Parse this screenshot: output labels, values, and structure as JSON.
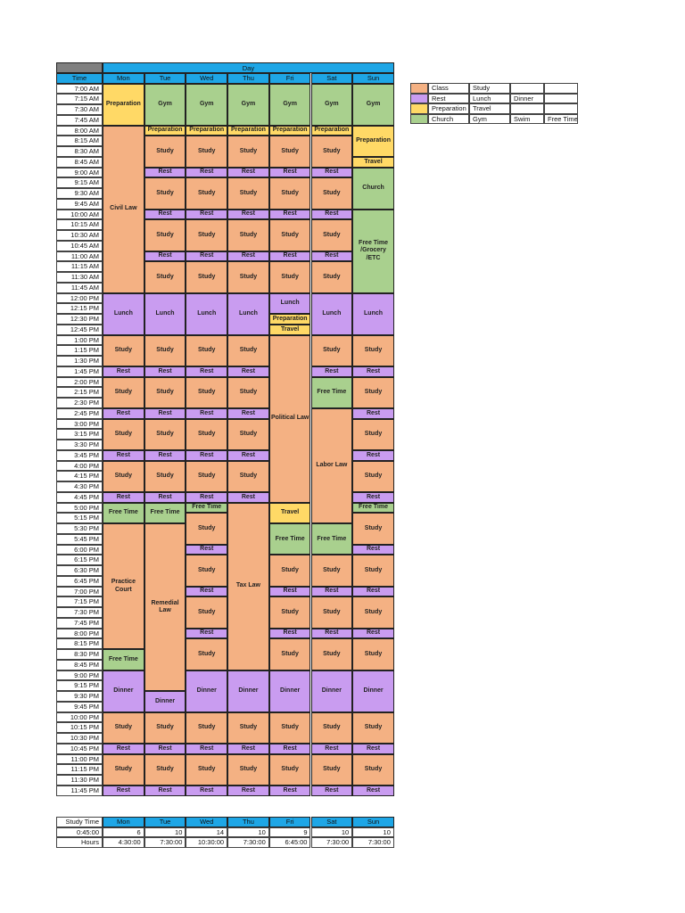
{
  "colors": {
    "class": "#f4b183",
    "rest": "#c99cf0",
    "prep": "#ffd966",
    "green": "#a9d08e",
    "header": "#1ea6e6",
    "corner": "#808080"
  },
  "header": {
    "day_label": "Day",
    "time_label": "Time",
    "days": [
      "Mon",
      "Tue",
      "Wed",
      "Thu",
      "Fri",
      "Sat",
      "Sun"
    ]
  },
  "times": [
    "7:00 AM",
    "7:15 AM",
    "7:30 AM",
    "7:45 AM",
    "8:00 AM",
    "8:15 AM",
    "8:30 AM",
    "8:45 AM",
    "9:00 AM",
    "9:15 AM",
    "9:30 AM",
    "9:45 AM",
    "10:00 AM",
    "10:15 AM",
    "10:30 AM",
    "10:45 AM",
    "11:00 AM",
    "11:15 AM",
    "11:30 AM",
    "11:45 AM",
    "12:00 PM",
    "12:15 PM",
    "12:30 PM",
    "12:45 PM",
    "1:00 PM",
    "1:15 PM",
    "1:30 PM",
    "1:45 PM",
    "2:00 PM",
    "2:15 PM",
    "2:30 PM",
    "2:45 PM",
    "3:00 PM",
    "3:15 PM",
    "3:30 PM",
    "3:45 PM",
    "4:00 PM",
    "4:15 PM",
    "4:30 PM",
    "4:45 PM",
    "5:00 PM",
    "5:15 PM",
    "5:30 PM",
    "5:45 PM",
    "6:00 PM",
    "6:15 PM",
    "6:30 PM",
    "6:45 PM",
    "7:00 PM",
    "7:15 PM",
    "7:30 PM",
    "7:45 PM",
    "8:00 PM",
    "8:15 PM",
    "8:30 PM",
    "8:45 PM",
    "9:00 PM",
    "9:15 PM",
    "9:30 PM",
    "9:45 PM",
    "10:00 PM",
    "10:15 PM",
    "10:30 PM",
    "10:45 PM",
    "11:00 PM",
    "11:15 PM",
    "11:30 PM",
    "11:45 PM"
  ],
  "schedule": [
    [
      [
        "Preparation",
        "prep",
        0,
        4
      ],
      [
        "Civil Law",
        "class",
        4,
        16
      ],
      [
        "Lunch",
        "rest",
        20,
        4
      ],
      [
        "Study",
        "class",
        24,
        3
      ],
      [
        "Rest",
        "rest",
        27,
        1
      ],
      [
        "Study",
        "class",
        28,
        3
      ],
      [
        "Rest",
        "rest",
        31,
        1
      ],
      [
        "Study",
        "class",
        32,
        3
      ],
      [
        "Rest",
        "rest",
        35,
        1
      ],
      [
        "Study",
        "class",
        36,
        3
      ],
      [
        "Rest",
        "rest",
        39,
        1
      ],
      [
        "Free Time",
        "green",
        40,
        2
      ],
      [
        "Practice Court",
        "class",
        42,
        12
      ],
      [
        "Free Time",
        "green",
        54,
        2
      ],
      [
        "Dinner",
        "rest",
        56,
        4
      ],
      [
        "Study",
        "class",
        60,
        3
      ],
      [
        "Rest",
        "rest",
        63,
        1
      ],
      [
        "Study",
        "class",
        64,
        3
      ],
      [
        "Rest",
        "rest",
        67,
        1
      ]
    ],
    [
      [
        "Gym",
        "green",
        0,
        4
      ],
      [
        "Preparation",
        "prep",
        4,
        1
      ],
      [
        "Study",
        "class",
        5,
        3
      ],
      [
        "Rest",
        "rest",
        8,
        1
      ],
      [
        "Study",
        "class",
        9,
        3
      ],
      [
        "Rest",
        "rest",
        12,
        1
      ],
      [
        "Study",
        "class",
        13,
        3
      ],
      [
        "Rest",
        "rest",
        16,
        1
      ],
      [
        "Study",
        "class",
        17,
        3
      ],
      [
        "Lunch",
        "rest",
        20,
        4
      ],
      [
        "Study",
        "class",
        24,
        3
      ],
      [
        "Rest",
        "rest",
        27,
        1
      ],
      [
        "Study",
        "class",
        28,
        3
      ],
      [
        "Rest",
        "rest",
        31,
        1
      ],
      [
        "Study",
        "class",
        32,
        3
      ],
      [
        "Rest",
        "rest",
        35,
        1
      ],
      [
        "Study",
        "class",
        36,
        3
      ],
      [
        "Rest",
        "rest",
        39,
        1
      ],
      [
        "Free Time",
        "green",
        40,
        2
      ],
      [
        "Remedial Law",
        "class",
        42,
        16
      ],
      [
        "Dinner",
        "rest",
        58,
        2
      ],
      [
        "Study",
        "class",
        60,
        3
      ],
      [
        "Rest",
        "rest",
        63,
        1
      ],
      [
        "Study",
        "class",
        64,
        3
      ],
      [
        "Rest",
        "rest",
        67,
        1
      ]
    ],
    [
      [
        "Gym",
        "green",
        0,
        4
      ],
      [
        "Preparation",
        "prep",
        4,
        1
      ],
      [
        "Study",
        "class",
        5,
        3
      ],
      [
        "Rest",
        "rest",
        8,
        1
      ],
      [
        "Study",
        "class",
        9,
        3
      ],
      [
        "Rest",
        "rest",
        12,
        1
      ],
      [
        "Study",
        "class",
        13,
        3
      ],
      [
        "Rest",
        "rest",
        16,
        1
      ],
      [
        "Study",
        "class",
        17,
        3
      ],
      [
        "Lunch",
        "rest",
        20,
        4
      ],
      [
        "Study",
        "class",
        24,
        3
      ],
      [
        "Rest",
        "rest",
        27,
        1
      ],
      [
        "Study",
        "class",
        28,
        3
      ],
      [
        "Rest",
        "rest",
        31,
        1
      ],
      [
        "Study",
        "class",
        32,
        3
      ],
      [
        "Rest",
        "rest",
        35,
        1
      ],
      [
        "Study",
        "class",
        36,
        3
      ],
      [
        "Rest",
        "rest",
        39,
        1
      ],
      [
        "Free Time",
        "green",
        40,
        1
      ],
      [
        "Study",
        "class",
        41,
        3
      ],
      [
        "Rest",
        "rest",
        44,
        1
      ],
      [
        "Study",
        "class",
        45,
        3
      ],
      [
        "Rest",
        "rest",
        48,
        1
      ],
      [
        "Study",
        "class",
        49,
        3
      ],
      [
        "Rest",
        "rest",
        52,
        1
      ],
      [
        "Study",
        "class",
        53,
        3
      ],
      [
        "Dinner",
        "rest",
        56,
        4
      ],
      [
        "Study",
        "class",
        60,
        3
      ],
      [
        "Rest",
        "rest",
        63,
        1
      ],
      [
        "Study",
        "class",
        64,
        3
      ],
      [
        "Rest",
        "rest",
        67,
        1
      ]
    ],
    [
      [
        "Gym",
        "green",
        0,
        4
      ],
      [
        "Preparation",
        "prep",
        4,
        1
      ],
      [
        "Study",
        "class",
        5,
        3
      ],
      [
        "Rest",
        "rest",
        8,
        1
      ],
      [
        "Study",
        "class",
        9,
        3
      ],
      [
        "Rest",
        "rest",
        12,
        1
      ],
      [
        "Study",
        "class",
        13,
        3
      ],
      [
        "Rest",
        "rest",
        16,
        1
      ],
      [
        "Study",
        "class",
        17,
        3
      ],
      [
        "Lunch",
        "rest",
        20,
        4
      ],
      [
        "Study",
        "class",
        24,
        3
      ],
      [
        "Rest",
        "rest",
        27,
        1
      ],
      [
        "Study",
        "class",
        28,
        3
      ],
      [
        "Rest",
        "rest",
        31,
        1
      ],
      [
        "Study",
        "class",
        32,
        3
      ],
      [
        "Rest",
        "rest",
        35,
        1
      ],
      [
        "Study",
        "class",
        36,
        3
      ],
      [
        "Rest",
        "rest",
        39,
        1
      ],
      [
        "Tax Law",
        "class",
        40,
        16
      ],
      [
        "Dinner",
        "rest",
        56,
        4
      ],
      [
        "Study",
        "class",
        60,
        3
      ],
      [
        "Rest",
        "rest",
        63,
        1
      ],
      [
        "Study",
        "class",
        64,
        3
      ],
      [
        "Rest",
        "rest",
        67,
        1
      ]
    ],
    [
      [
        "Gym",
        "green",
        0,
        4
      ],
      [
        "Preparation",
        "prep",
        4,
        1
      ],
      [
        "Study",
        "class",
        5,
        3
      ],
      [
        "Rest",
        "rest",
        8,
        1
      ],
      [
        "Study",
        "class",
        9,
        3
      ],
      [
        "Rest",
        "rest",
        12,
        1
      ],
      [
        "Study",
        "class",
        13,
        3
      ],
      [
        "Rest",
        "rest",
        16,
        1
      ],
      [
        "Study",
        "class",
        17,
        3
      ],
      [
        "Lunch",
        "rest",
        20,
        2
      ],
      [
        "Preparation",
        "prep",
        22,
        1
      ],
      [
        "Travel",
        "prep",
        23,
        1
      ],
      [
        "Political Law",
        "class",
        24,
        16
      ],
      [
        "Travel",
        "prep",
        40,
        2
      ],
      [
        "Free Time",
        "green",
        42,
        3
      ],
      [
        "Study",
        "class",
        45,
        3
      ],
      [
        "Rest",
        "rest",
        48,
        1
      ],
      [
        "Study",
        "class",
        49,
        3
      ],
      [
        "Rest",
        "rest",
        52,
        1
      ],
      [
        "Study",
        "class",
        53,
        3
      ],
      [
        "Dinner",
        "rest",
        56,
        4
      ],
      [
        "Study",
        "class",
        60,
        3
      ],
      [
        "Rest",
        "rest",
        63,
        1
      ],
      [
        "Study",
        "class",
        64,
        3
      ],
      [
        "Rest",
        "rest",
        67,
        1
      ]
    ],
    [
      [
        "Gym",
        "green",
        0,
        4
      ],
      [
        "Preparation",
        "prep",
        4,
        1
      ],
      [
        "Study",
        "class",
        5,
        3
      ],
      [
        "Rest",
        "rest",
        8,
        1
      ],
      [
        "Study",
        "class",
        9,
        3
      ],
      [
        "Rest",
        "rest",
        12,
        1
      ],
      [
        "Study",
        "class",
        13,
        3
      ],
      [
        "Rest",
        "rest",
        16,
        1
      ],
      [
        "Study",
        "class",
        17,
        3
      ],
      [
        "Lunch",
        "rest",
        20,
        4
      ],
      [
        "Study",
        "class",
        24,
        3
      ],
      [
        "Rest",
        "rest",
        27,
        1
      ],
      [
        "Free Time",
        "green",
        28,
        3
      ],
      [
        "Labor Law",
        "class",
        31,
        11
      ],
      [
        "Free Time",
        "green",
        42,
        3
      ],
      [
        "Study",
        "class",
        45,
        3
      ],
      [
        "Rest",
        "rest",
        48,
        1
      ],
      [
        "Study",
        "class",
        49,
        3
      ],
      [
        "Rest",
        "rest",
        52,
        1
      ],
      [
        "Study",
        "class",
        53,
        3
      ],
      [
        "Dinner",
        "rest",
        56,
        4
      ],
      [
        "Study",
        "class",
        60,
        3
      ],
      [
        "Rest",
        "rest",
        63,
        1
      ],
      [
        "Study",
        "class",
        64,
        3
      ],
      [
        "Rest",
        "rest",
        67,
        1
      ]
    ],
    [
      [
        "Gym",
        "green",
        0,
        4
      ],
      [
        "Preparation",
        "prep",
        4,
        3
      ],
      [
        "Travel",
        "prep",
        7,
        1
      ],
      [
        "Church",
        "green",
        8,
        4
      ],
      [
        "Free Time /Grocery /ETC",
        "green",
        12,
        8
      ],
      [
        "Lunch",
        "rest",
        20,
        4
      ],
      [
        "Study",
        "class",
        24,
        3
      ],
      [
        "Rest",
        "rest",
        27,
        1
      ],
      [
        "Study",
        "class",
        28,
        3
      ],
      [
        "Rest",
        "rest",
        31,
        1
      ],
      [
        "Study",
        "class",
        32,
        3
      ],
      [
        "Rest",
        "rest",
        35,
        1
      ],
      [
        "Study",
        "class",
        36,
        3
      ],
      [
        "Rest",
        "rest",
        39,
        1
      ],
      [
        "Free Time",
        "green",
        40,
        1
      ],
      [
        "Study",
        "class",
        41,
        3
      ],
      [
        "Rest",
        "rest",
        44,
        1
      ],
      [
        "Study",
        "class",
        45,
        3
      ],
      [
        "Rest",
        "rest",
        48,
        1
      ],
      [
        "Study",
        "class",
        49,
        3
      ],
      [
        "Rest",
        "rest",
        52,
        1
      ],
      [
        "Study",
        "class",
        53,
        3
      ],
      [
        "Dinner",
        "rest",
        56,
        4
      ],
      [
        "Study",
        "class",
        60,
        3
      ],
      [
        "Rest",
        "rest",
        63,
        1
      ],
      [
        "Study",
        "class",
        64,
        3
      ],
      [
        "Rest",
        "rest",
        67,
        1
      ]
    ]
  ],
  "legend": [
    [
      "Class",
      "class",
      "Study",
      ""
    ],
    [
      "Rest",
      "rest",
      "Lunch",
      "Dinner"
    ],
    [
      "Preparation",
      "prep",
      "Travel",
      ""
    ],
    [
      "Church",
      "green",
      "Gym",
      "Swim",
      "Free Time"
    ]
  ],
  "summary": {
    "label": "Study Time",
    "rows": [
      {
        "label": "0:45:00",
        "values": [
          "6",
          "10",
          "14",
          "10",
          "9",
          "10",
          "10"
        ]
      },
      {
        "label": "Hours",
        "values": [
          "4:30:00",
          "7:30:00",
          "10:30:00",
          "7:30:00",
          "6:45:00",
          "7:30:00",
          "7:30:00"
        ]
      }
    ]
  }
}
